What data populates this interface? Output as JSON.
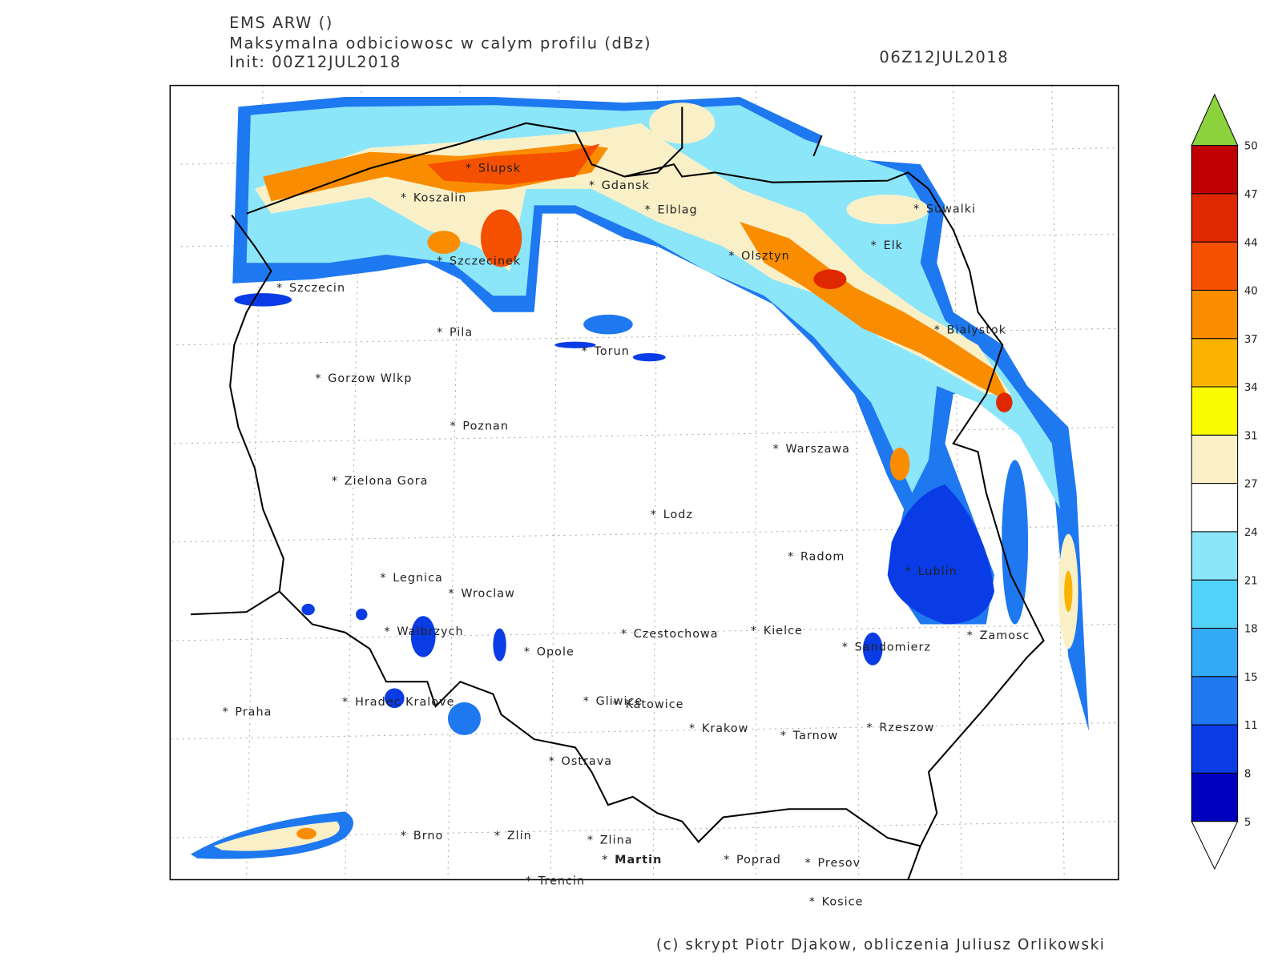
{
  "header": {
    "model": "EMS ARW ()",
    "field": "Maksymalna odbiciowosc w calym profilu (dBz)",
    "init": "Init: 00Z12JUL2018",
    "valid": "06Z12JUL2018"
  },
  "cities": [
    "Slupsk",
    "Koszalin",
    "Gdansk",
    "Elblag",
    "Suwalki",
    "Elk",
    "Olsztyn",
    "Szczecinek",
    "Szczecin",
    "Pila",
    "Torun",
    "Bialystok",
    "Gorzow Wlkp",
    "Poznan",
    "Warszawa",
    "Zielona Gora",
    "Lodz",
    "Radom",
    "Lublin",
    "Legnica",
    "Wroclaw",
    "Walbrzych",
    "Czestochowa",
    "Kielce",
    "Zamosc",
    "Opole",
    "Sandomierz",
    "Praha",
    "Hradec Kralove",
    "Gliwice",
    "Katowice",
    "Krakow",
    "Tarnow",
    "Rzeszow",
    "Ostrava",
    "Brno",
    "Zlin",
    "Zlina",
    "Martin",
    "Poprad",
    "Presov",
    "Trencin",
    "Kosice"
  ],
  "colorbar": {
    "levels": [
      5,
      8,
      11,
      15,
      18,
      21,
      24,
      27,
      31,
      34,
      37,
      40,
      44,
      47,
      50
    ],
    "colors": [
      "#0000c0",
      "#0a3ce6",
      "#1e78f0",
      "#32aaf5",
      "#50d2fa",
      "#8ce6fa",
      "#ffffff",
      "#faf0c8",
      "#fafa00",
      "#fab400",
      "#fa8c00",
      "#f55000",
      "#e02800",
      "#c00000"
    ],
    "under_color": "#ffffff",
    "over_color": "#8cd23c"
  },
  "footer": "(c) skrypt Piotr Djakow, obliczenia Juliusz Orlikowski"
}
